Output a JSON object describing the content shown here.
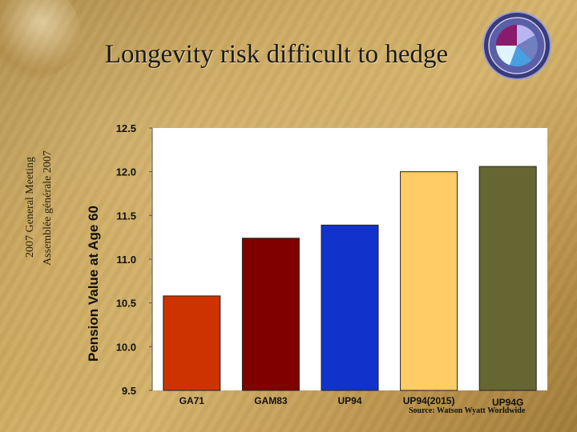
{
  "slide": {
    "title": "Longevity risk difficult to hedge",
    "side_text_en": "2007 General Meeting",
    "side_text_fr": "Assemblée générale 2007",
    "source": "Source: Watson Wyatt Worldwide"
  },
  "chart_data": {
    "type": "bar",
    "categories": [
      "GA71",
      "GAM83",
      "UP94",
      "UP94(2015)",
      "UP94G"
    ],
    "values": [
      10.58,
      11.24,
      11.39,
      12.0,
      12.06
    ],
    "colors": [
      "#cc3300",
      "#800000",
      "#1133cc",
      "#ffcc66",
      "#666633"
    ],
    "ylabel": "Pension Value at Age 60",
    "ylim": [
      9.5,
      12.5
    ],
    "yticks": [
      "12.5",
      "12.0",
      "11.5",
      "11.0",
      "10.5",
      "10.0",
      "9.5"
    ],
    "plot_background": "#ffffff",
    "grid": false
  }
}
